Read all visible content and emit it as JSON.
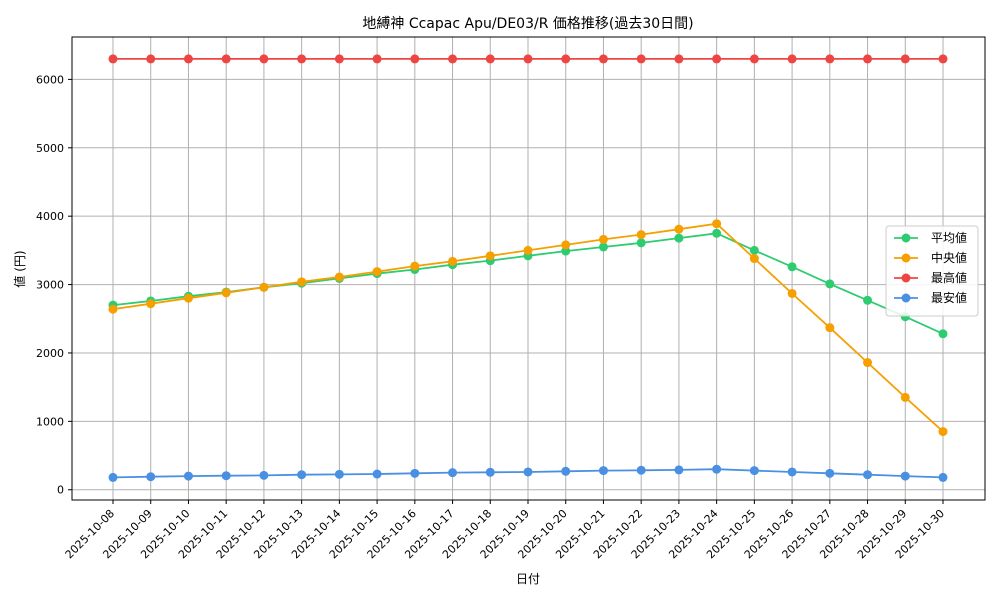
{
  "chart_data": {
    "type": "line",
    "title": "地縛神 Ccapac Apu/DE03/R 価格推移(過去30日間)",
    "xlabel": "日付",
    "ylabel": "値 (円)",
    "ylim": [
      -150,
      6620
    ],
    "yticks": [
      0,
      1000,
      2000,
      3000,
      4000,
      5000,
      6000
    ],
    "grid": true,
    "legend_position": "right",
    "categories": [
      "2025-10-08",
      "2025-10-09",
      "2025-10-10",
      "2025-10-11",
      "2025-10-12",
      "2025-10-13",
      "2025-10-14",
      "2025-10-15",
      "2025-10-16",
      "2025-10-17",
      "2025-10-18",
      "2025-10-19",
      "2025-10-20",
      "2025-10-21",
      "2025-10-22",
      "2025-10-23",
      "2025-10-24",
      "2025-10-25",
      "2025-10-26",
      "2025-10-27",
      "2025-10-28",
      "2025-10-29",
      "2025-10-30"
    ],
    "series": [
      {
        "name": "平均値",
        "color": "#2ecc71",
        "values": [
          2700,
          2760,
          2830,
          2890,
          2960,
          3020,
          3090,
          3160,
          3220,
          3290,
          3350,
          3420,
          3490,
          3550,
          3610,
          3680,
          3750,
          3500,
          3260,
          3010,
          2770,
          2530,
          2280
        ]
      },
      {
        "name": "中央値",
        "color": "#f5a000",
        "values": [
          2640,
          2720,
          2800,
          2880,
          2960,
          3040,
          3110,
          3190,
          3270,
          3340,
          3420,
          3500,
          3580,
          3660,
          3730,
          3810,
          3890,
          3380,
          2870,
          2370,
          1860,
          1350,
          850
        ]
      },
      {
        "name": "最高値",
        "color": "#ef4444",
        "values": [
          6300,
          6300,
          6300,
          6300,
          6300,
          6300,
          6300,
          6300,
          6300,
          6300,
          6300,
          6300,
          6300,
          6300,
          6300,
          6300,
          6300,
          6300,
          6300,
          6300,
          6300,
          6300,
          6300
        ]
      },
      {
        "name": "最安値",
        "color": "#4a90e2",
        "values": [
          180,
          190,
          200,
          205,
          210,
          220,
          225,
          230,
          240,
          250,
          255,
          260,
          270,
          280,
          285,
          290,
          300,
          280,
          260,
          240,
          220,
          200,
          180
        ]
      }
    ]
  }
}
